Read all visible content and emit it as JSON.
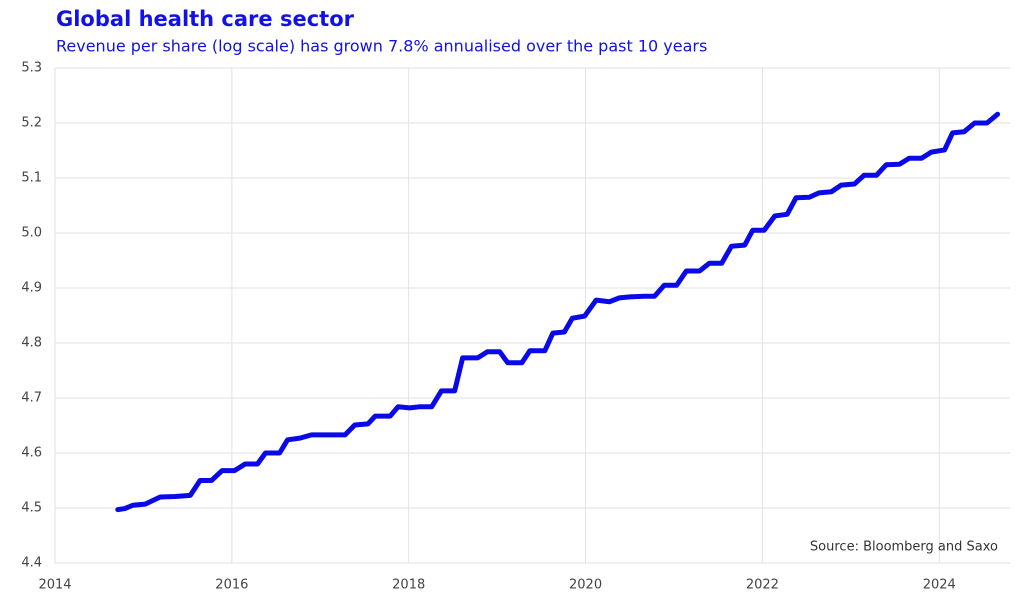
{
  "chart_data": {
    "type": "line",
    "title": "Global health care sector",
    "subtitle": "Revenue per share (log scale) has grown 7.8% annualised over the past 10 years",
    "annotation": "Source: Bloomberg and Saxo",
    "log_scale": false,
    "grid": true,
    "xlim": [
      2014,
      2024.8
    ],
    "xticks": [
      2014,
      2016,
      2018,
      2020,
      2022,
      2024
    ],
    "ylim": [
      4.4,
      5.3
    ],
    "yticks": [
      4.4,
      4.5,
      4.6,
      4.7,
      4.8,
      4.9,
      {
        "value": 5,
        "label": "5.0"
      },
      5.1,
      5.2,
      5.3
    ],
    "series": [
      {
        "color": "#0a0ae8",
        "x": [
          2014.71,
          2014.79,
          2014.88,
          2015.02,
          2015.19,
          2015.36,
          2015.53,
          2015.64,
          2015.77,
          2015.89,
          2016.03,
          2016.15,
          2016.29,
          2016.38,
          2016.54,
          2016.63,
          2016.77,
          2016.9,
          2017.28,
          2017.39,
          2017.54,
          2017.62,
          2017.79,
          2017.88,
          2018.01,
          2018.12,
          2018.26,
          2018.37,
          2018.52,
          2018.61,
          2018.78,
          2018.89,
          2019.03,
          2019.12,
          2019.28,
          2019.37,
          2019.54,
          2019.63,
          2019.76,
          2019.85,
          2019.99,
          2020.12,
          2020.27,
          2020.38,
          2020.52,
          2020.67,
          2020.78,
          2020.89,
          2021.03,
          2021.14,
          2021.29,
          2021.4,
          2021.54,
          2021.65,
          2021.8,
          2021.89,
          2022.02,
          2022.14,
          2022.28,
          2022.38,
          2022.53,
          2022.64,
          2022.78,
          2022.89,
          2023.04,
          2023.15,
          2023.29,
          2023.4,
          2023.55,
          2023.66,
          2023.8,
          2023.91,
          2024.06,
          2024.15,
          2024.28,
          2024.4,
          2024.54,
          2024.66
        ],
        "values": [
          4.497,
          4.499,
          4.505,
          4.507,
          4.52,
          4.521,
          4.523,
          4.55,
          4.55,
          4.568,
          4.568,
          4.58,
          4.58,
          4.6,
          4.6,
          4.624,
          4.627,
          4.633,
          4.633,
          4.651,
          4.653,
          4.667,
          4.667,
          4.684,
          4.682,
          4.684,
          4.684,
          4.713,
          4.713,
          4.773,
          4.773,
          4.784,
          4.784,
          4.764,
          4.764,
          4.786,
          4.786,
          4.818,
          4.82,
          4.845,
          4.849,
          4.878,
          4.875,
          4.882,
          4.884,
          4.885,
          4.885,
          4.905,
          4.905,
          4.931,
          4.931,
          4.945,
          4.945,
          4.976,
          4.978,
          5.005,
          5.005,
          5.031,
          5.034,
          5.064,
          5.065,
          5.073,
          5.075,
          5.087,
          5.089,
          5.105,
          5.105,
          5.124,
          5.125,
          5.136,
          5.136,
          5.147,
          5.151,
          5.182,
          5.184,
          5.2,
          5.2,
          5.216
        ]
      }
    ]
  }
}
